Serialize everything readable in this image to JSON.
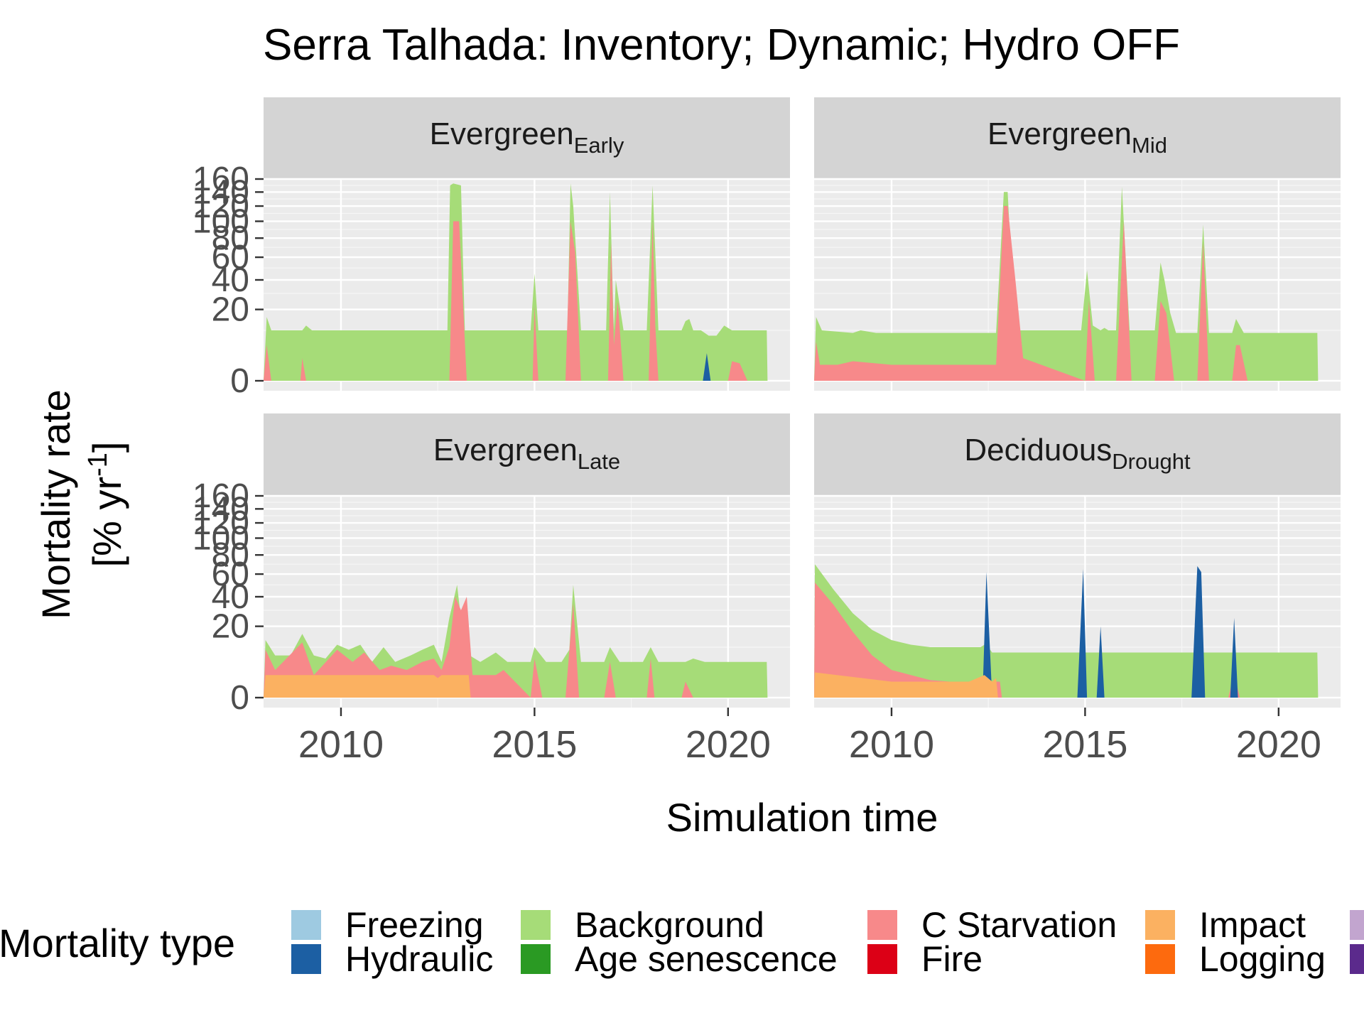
{
  "chart_data": {
    "type": "area",
    "title": "Serra Talhada: Inventory; Dynamic; Hydro OFF",
    "xlabel": "Simulation time",
    "ylabel": [
      "Mortality rate",
      "[% yr",
      "-1",
      "]"
    ],
    "xlim": [
      2008,
      2021.6
    ],
    "ylim": [
      0,
      160
    ],
    "x_ticks": [
      "2010",
      "2015",
      "2020"
    ],
    "y_ticks": [
      "0",
      "20",
      "40",
      "60",
      "80",
      "100",
      "120",
      "140",
      "160"
    ],
    "y_scale": "sqrt",
    "grid": true,
    "legend": {
      "title": "Mortality type",
      "position": "bottom",
      "entries": [
        {
          "name": "Freezing",
          "color": "#9ecae1"
        },
        {
          "name": "Hydraulic",
          "color": "#1c5fa3"
        },
        {
          "name": "Background",
          "color": "#a6dc78"
        },
        {
          "name": "Age senescence",
          "color": "#2a9a23"
        },
        {
          "name": "C Starvation",
          "color": "#f7898a"
        },
        {
          "name": "Fire",
          "color": "#dc0016"
        },
        {
          "name": "Impact",
          "color": "#fbb161"
        },
        {
          "name": "Logging",
          "color": "#fd6a0e"
        },
        {
          "name": "",
          "color": "#c2a5cf"
        },
        {
          "name": "",
          "color": "#5b2a8c"
        }
      ]
    },
    "panels": [
      {
        "label": "Evergreen",
        "sub": "Early",
        "series": [
          {
            "name": "Background",
            "x": [
              2008,
              2008.08,
              2008.2,
              2009.0,
              2009.1,
              2009.25,
              2012.75,
              2012.82,
              2012.9,
              2013.1,
              2013.2,
              2013.3,
              2014.9,
              2015.0,
              2015.1,
              2015.7,
              2015.85,
              2015.93,
              2016.0,
              2016.2,
              2016.85,
              2016.95,
              2017.05,
              2017.1,
              2017.3,
              2017.9,
              2018.05,
              2018.2,
              2018.8,
              2018.9,
              2019.0,
              2019.1,
              2019.3,
              2019.5,
              2019.7,
              2019.9,
              2020.1,
              2020.5,
              2021.0,
              2021.02
            ],
            "y": [
              0,
              16,
              10,
              10,
              12,
              10,
              10,
              150,
              153,
              150,
              10,
              10,
              10,
              45,
              10,
              10,
              10,
              153,
              120,
              10,
              10,
              140,
              10,
              40,
              10,
              10,
              150,
              10,
              10,
              14,
              15,
              10,
              10,
              8,
              8,
              12,
              10,
              10,
              10,
              0
            ]
          },
          {
            "name": "C Starvation",
            "x": [
              2008,
              2008.08,
              2008.2,
              2008.95,
              2009.0,
              2009.1,
              2012.8,
              2012.9,
              2013.05,
              2013.25,
              2014.95,
              2015.0,
              2015.1,
              2015.8,
              2015.93,
              2016.05,
              2016.2,
              2016.9,
              2016.98,
              2017.05,
              2017.15,
              2017.3,
              2017.95,
              2018.05,
              2018.12,
              2018.2,
              2020.0,
              2020.1,
              2020.3,
              2020.5,
              2021.0
            ],
            "y": [
              0,
              5,
              0,
              0,
              2,
              0,
              0,
              100,
              100,
              0,
              0,
              22,
              0,
              0,
              100,
              65,
              0,
              0,
              75,
              5,
              25,
              0,
              0,
              100,
              12,
              0,
              0,
              1.5,
              1.2,
              0,
              0
            ]
          },
          {
            "name": "Hydraulic",
            "x": [
              2019.35,
              2019.45,
              2019.55
            ],
            "y": [
              0,
              3,
              0
            ]
          }
        ]
      },
      {
        "label": "Evergreen",
        "sub": "Mid",
        "series": [
          {
            "name": "Background",
            "x": [
              2008,
              2008.05,
              2008.2,
              2009.0,
              2009.2,
              2009.6,
              2012.7,
              2012.9,
              2013.0,
              2013.1,
              2013.3,
              2014.9,
              2015.05,
              2015.2,
              2015.4,
              2015.5,
              2015.6,
              2015.8,
              2015.95,
              2016.15,
              2016.8,
              2016.95,
              2017.05,
              2017.2,
              2017.35,
              2017.9,
              2018.05,
              2018.2,
              2018.8,
              2018.9,
              2019.1,
              2019.3,
              2021.0,
              2021.02
            ],
            "y": [
              0,
              16,
              10,
              9,
              10,
              9,
              9,
              140,
              140,
              50,
              10,
              10,
              48,
              12,
              10,
              11,
              10,
              10,
              148,
              10,
              10,
              55,
              40,
              18,
              9,
              9,
              96,
              9,
              9,
              15,
              9,
              9,
              9,
              0
            ]
          },
          {
            "name": "C Starvation",
            "x": [
              2008,
              2008.05,
              2008.15,
              2008.6,
              2009.0,
              2010.0,
              2011.0,
              2012.0,
              2012.7,
              2012.9,
              2013.0,
              2013.2,
              2013.4,
              2015.0,
              2015.1,
              2015.25,
              2015.8,
              2016.0,
              2016.2,
              2016.8,
              2016.95,
              2017.1,
              2017.3,
              2017.9,
              2018.05,
              2018.2,
              2018.8,
              2018.9,
              2019.0,
              2019.2,
              2021.0
            ],
            "y": [
              0,
              6,
              1,
              1,
              1.5,
              1,
              1,
              1,
              1,
              120,
              120,
              40,
              2,
              0,
              25,
              0,
              0,
              100,
              0,
              0,
              25,
              18,
              0,
              0,
              75,
              0,
              0,
              5,
              5,
              0,
              0
            ]
          }
        ]
      },
      {
        "label": "Evergreen",
        "sub": "Late",
        "series": [
          {
            "name": "Background",
            "x": [
              2008,
              2008.05,
              2008.3,
              2008.7,
              2009.0,
              2009.3,
              2009.6,
              2009.9,
              2010.2,
              2010.5,
              2010.8,
              2011.1,
              2011.4,
              2011.8,
              2012.1,
              2012.4,
              2012.6,
              2012.8,
              2013.0,
              2013.2,
              2013.6,
              2014.0,
              2014.3,
              2014.9,
              2015.0,
              2015.3,
              2015.7,
              2015.9,
              2016.0,
              2016.2,
              2016.8,
              2016.95,
              2017.2,
              2017.8,
              2018.0,
              2018.2,
              2018.9,
              2019.1,
              2019.4,
              2020.0,
              2021.0,
              2021.02
            ],
            "y": [
              0,
              13,
              7,
              7,
              16,
              7,
              6,
              11,
              9,
              11,
              5,
              10,
              5,
              7,
              9,
              11,
              5,
              25,
              50,
              8,
              5,
              8,
              5,
              5,
              10,
              5,
              5,
              9,
              50,
              5,
              5,
              10,
              5,
              5,
              10,
              5,
              5,
              6,
              5,
              5,
              5,
              0
            ]
          },
          {
            "name": "C Starvation",
            "x": [
              2008,
              2008.05,
              2008.3,
              2009.0,
              2009.3,
              2009.9,
              2010.3,
              2010.6,
              2011.0,
              2011.3,
              2011.7,
              2012.1,
              2012.4,
              2012.6,
              2012.8,
              2012.95,
              2013.1,
              2013.25,
              2013.4,
              2014.0,
              2014.2,
              2014.9,
              2015.0,
              2015.2,
              2015.8,
              2016.0,
              2016.15,
              2016.8,
              2016.95,
              2017.1,
              2017.9,
              2018.0,
              2018.1,
              2018.8,
              2018.9,
              2019.1,
              2021.0
            ],
            "y": [
              0,
              9,
              3,
              12,
              2,
              9,
              5,
              8,
              3,
              4,
              3,
              5,
              6,
              3,
              10,
              40,
              30,
              40,
              2,
              2,
              3,
              0,
              6,
              0,
              0,
              35,
              0,
              0,
              5,
              0,
              0,
              6,
              0,
              0,
              1,
              0,
              0
            ]
          },
          {
            "name": "Impact",
            "x": [
              2008,
              2008.05,
              2012.4,
              2012.5,
              2012.6,
              2013.3,
              2013.35
            ],
            "y": [
              0,
              2,
              2,
              1.5,
              2,
              2,
              0
            ]
          }
        ]
      },
      {
        "label": "Deciduous",
        "sub": "Drought",
        "series": [
          {
            "name": "Background",
            "x": [
              2008,
              2008.02,
              2008.5,
              2009.0,
              2009.5,
              2010.0,
              2010.5,
              2011.0,
              2011.5,
              2012.0,
              2012.3,
              2012.4,
              2012.5,
              2012.6,
              2013.0,
              2016.0,
              2021.0,
              2021.02
            ],
            "y": [
              0,
              70,
              46,
              28,
              18,
              13,
              11,
              10,
              10,
              10,
              10,
              11,
              10,
              8,
              8,
              8,
              8,
              0
            ]
          },
          {
            "name": "C Starvation",
            "x": [
              2008,
              2008.02,
              2008.5,
              2009.0,
              2009.5,
              2010.0,
              2010.5,
              2011.0,
              2011.5,
              2012.0,
              2012.5,
              2012.8,
              2012.85,
              2018.7,
              2018.8,
              2018.9,
              2019.0
            ],
            "y": [
              0,
              52,
              34,
              17,
              7,
              3,
              2,
              1.2,
              1,
              1,
              1,
              1,
              0,
              0,
              1,
              1,
              0
            ]
          },
          {
            "name": "Hydraulic",
            "x": [
              2012.35,
              2012.45,
              2012.6,
              2014.8,
              2014.95,
              2015.05,
              2015.3,
              2015.4,
              2015.5,
              2017.75,
              2017.9,
              2018.0,
              2018.1,
              2018.75,
              2018.85,
              2018.95
            ],
            "y": [
              0,
              62,
              0,
              0,
              65,
              0,
              0,
              20,
              0,
              0,
              68,
              62,
              0,
              0,
              25,
              0
            ]
          },
          {
            "name": "Impact",
            "x": [
              2008,
              2008.02,
              2010.0,
              2012.0,
              2012.4,
              2012.6,
              2012.7,
              2012.75
            ],
            "y": [
              0,
              2.5,
              1,
              1,
              2,
              1,
              1.5,
              0
            ]
          }
        ]
      }
    ]
  }
}
